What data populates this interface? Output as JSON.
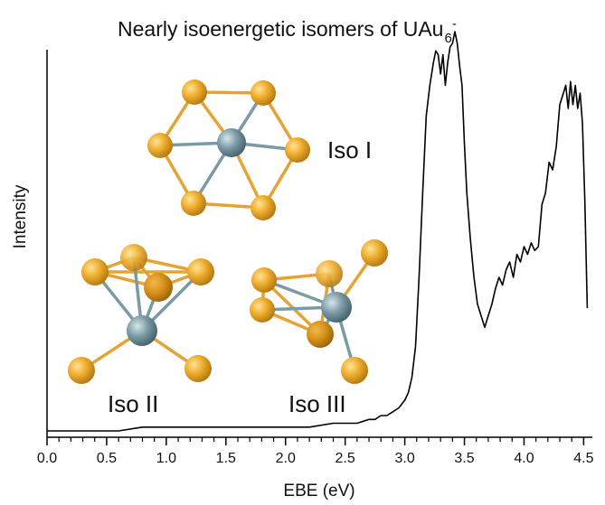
{
  "chart_data": {
    "type": "line",
    "title": {
      "prefix": "Nearly isoenergetic isomers of UAu",
      "subscript": "6",
      "superscript": "-"
    },
    "xlabel": "EBE (eV)",
    "ylabel": "Intensity",
    "xlim": [
      0,
      4.55
    ],
    "ylim": [
      0,
      1
    ],
    "x_ticks": [
      "0.0",
      "0.5",
      "1.0",
      "1.5",
      "2.0",
      "2.5",
      "3.0",
      "3.5",
      "4.0",
      "4.5"
    ],
    "x_tick_values": [
      0,
      0.5,
      1.0,
      1.5,
      2.0,
      2.5,
      3.0,
      3.5,
      4.0,
      4.5
    ],
    "y_ticks_visible": false,
    "grid": false,
    "legend": "none",
    "colors": {
      "line": "#000000",
      "gold_atom": "#e8a526",
      "gold_bond": "#e6a335",
      "uranium_atom": "#6f8f9a",
      "uranium_bond": "#7a9aa4"
    },
    "series": [
      {
        "x": [
          0.0,
          0.2,
          0.4,
          0.6,
          0.8,
          1.0,
          1.2,
          1.4,
          1.6,
          1.8,
          2.0,
          2.2,
          2.4,
          2.5,
          2.6,
          2.7,
          2.75,
          2.8,
          2.85,
          2.9,
          2.95,
          3.0,
          3.03,
          3.06,
          3.09,
          3.12,
          3.15,
          3.18,
          3.21,
          3.24,
          3.26,
          3.28,
          3.3,
          3.32,
          3.34,
          3.36,
          3.38,
          3.4,
          3.42,
          3.44,
          3.46,
          3.48,
          3.5,
          3.52,
          3.55,
          3.58,
          3.61,
          3.64,
          3.67,
          3.7,
          3.73,
          3.76,
          3.79,
          3.82,
          3.85,
          3.88,
          3.91,
          3.94,
          3.97,
          4.0,
          4.03,
          4.06,
          4.09,
          4.12,
          4.15,
          4.18,
          4.21,
          4.24,
          4.27,
          4.3,
          4.33,
          4.35,
          4.37,
          4.39,
          4.41,
          4.43,
          4.45,
          4.47,
          4.49,
          4.51,
          4.53
        ],
        "y": [
          0.0,
          0.0,
          0.0,
          0.0,
          0.01,
          0.01,
          0.01,
          0.01,
          0.01,
          0.01,
          0.01,
          0.01,
          0.02,
          0.02,
          0.02,
          0.03,
          0.03,
          0.04,
          0.04,
          0.05,
          0.06,
          0.08,
          0.1,
          0.14,
          0.22,
          0.4,
          0.62,
          0.82,
          0.9,
          0.96,
          0.99,
          0.98,
          0.93,
          0.98,
          0.9,
          0.96,
          1.0,
          1.01,
          1.04,
          1.01,
          0.95,
          0.9,
          0.75,
          0.62,
          0.5,
          0.4,
          0.33,
          0.3,
          0.27,
          0.3,
          0.33,
          0.37,
          0.4,
          0.38,
          0.42,
          0.44,
          0.4,
          0.46,
          0.44,
          0.48,
          0.46,
          0.49,
          0.47,
          0.48,
          0.59,
          0.62,
          0.7,
          0.68,
          0.74,
          0.85,
          0.88,
          0.9,
          0.84,
          0.91,
          0.85,
          0.9,
          0.84,
          0.88,
          0.8,
          0.6,
          0.32
        ]
      }
    ],
    "annotations": [
      {
        "text": "Iso I"
      },
      {
        "text": "Iso II"
      },
      {
        "text": "Iso III"
      }
    ]
  }
}
